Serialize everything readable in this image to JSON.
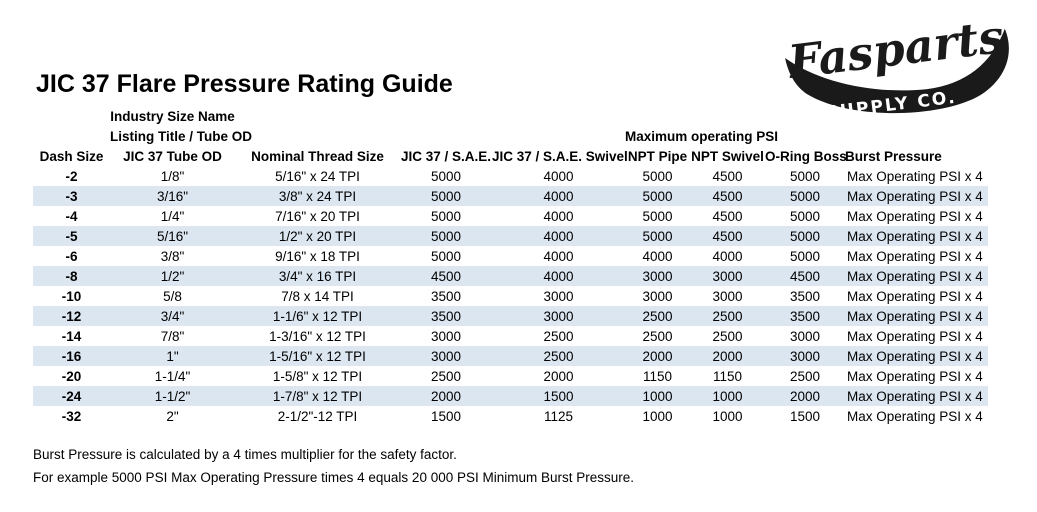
{
  "logo": {
    "script_text": "Fasparts",
    "swoosh_text": "SUPPLY CO.",
    "color": "#1a1a1a"
  },
  "title": "JIC 37 Flare Pressure Rating Guide",
  "table": {
    "group_headers": {
      "industry_line1": "Industry Size Name",
      "industry_line2": "Listing Title / Tube OD",
      "max_psi": "Maximum operating PSI"
    },
    "columns": [
      "Dash Size",
      "JIC 37 Tube OD",
      "Nominal Thread Size",
      "JIC 37 / S.A.E.",
      "JIC 37 / S.A.E. Swivel",
      "NPT Pipe",
      "NPT Swivel",
      "O-Ring Boss",
      "Burst Pressure"
    ],
    "column_keys": [
      "dash-size",
      "tube-od",
      "thread-size",
      "jic-sae",
      "jic-sae-swivel",
      "npt-pipe",
      "npt-swivel",
      "oring-boss",
      "burst-pressure"
    ],
    "rows": [
      [
        "-2",
        "1/8\"",
        "5/16\" x 24 TPI",
        "5000",
        "4000",
        "5000",
        "4500",
        "5000",
        "Max Operating PSI x 4"
      ],
      [
        "-3",
        "3/16\"",
        "3/8\" x 24 TPI",
        "5000",
        "4000",
        "5000",
        "4500",
        "5000",
        "Max Operating PSI x 4"
      ],
      [
        "-4",
        "1/4\"",
        "7/16\" x 20 TPI",
        "5000",
        "4000",
        "5000",
        "4500",
        "5000",
        "Max Operating PSI x 4"
      ],
      [
        "-5",
        "5/16\"",
        "1/2\" x 20 TPI",
        "5000",
        "4000",
        "5000",
        "4500",
        "5000",
        "Max Operating PSI x 4"
      ],
      [
        "-6",
        "3/8\"",
        "9/16\" x 18 TPI",
        "5000",
        "4000",
        "4000",
        "4000",
        "5000",
        "Max Operating PSI x 4"
      ],
      [
        "-8",
        "1/2\"",
        "3/4\" x 16 TPI",
        "4500",
        "4000",
        "3000",
        "3000",
        "4500",
        "Max Operating PSI x 4"
      ],
      [
        "-10",
        "5/8",
        "7/8 x 14 TPI",
        "3500",
        "3000",
        "3000",
        "3000",
        "3500",
        "Max Operating PSI x 4"
      ],
      [
        "-12",
        "3/4\"",
        "1-1/6\" x 12 TPI",
        "3500",
        "3000",
        "2500",
        "2500",
        "3500",
        "Max Operating PSI x 4"
      ],
      [
        "-14",
        "7/8\"",
        "1-3/16\" x 12 TPI",
        "3000",
        "2500",
        "2500",
        "2500",
        "3000",
        "Max Operating PSI x 4"
      ],
      [
        "-16",
        "1\"",
        "1-5/16\" x 12 TPI",
        "3000",
        "2500",
        "2000",
        "2000",
        "3000",
        "Max Operating PSI x 4"
      ],
      [
        "-20",
        "1-1/4\"",
        "1-5/8\" x 12 TPI",
        "2500",
        "2000",
        "1150",
        "1150",
        "2500",
        "Max Operating PSI x 4"
      ],
      [
        "-24",
        "1-1/2\"",
        "1-7/8\" x 12 TPI",
        "2000",
        "1500",
        "1000",
        "1000",
        "2000",
        "Max Operating PSI x 4"
      ],
      [
        "-32",
        "2\"",
        "2-1/2\"-12 TPI",
        "1500",
        "1125",
        "1000",
        "1000",
        "1500",
        "Max Operating PSI x 4"
      ]
    ]
  },
  "footer": {
    "line1": "Burst Pressure is calculated by a 4 times multiplier for the safety factor.",
    "line2": "For example 5000 PSI Max Operating Pressure times 4 equals 20 000 PSI Minimum Burst Pressure."
  },
  "colors": {
    "stripe": "#dce6f1",
    "text": "#000000",
    "logo": "#1a1a1a"
  }
}
